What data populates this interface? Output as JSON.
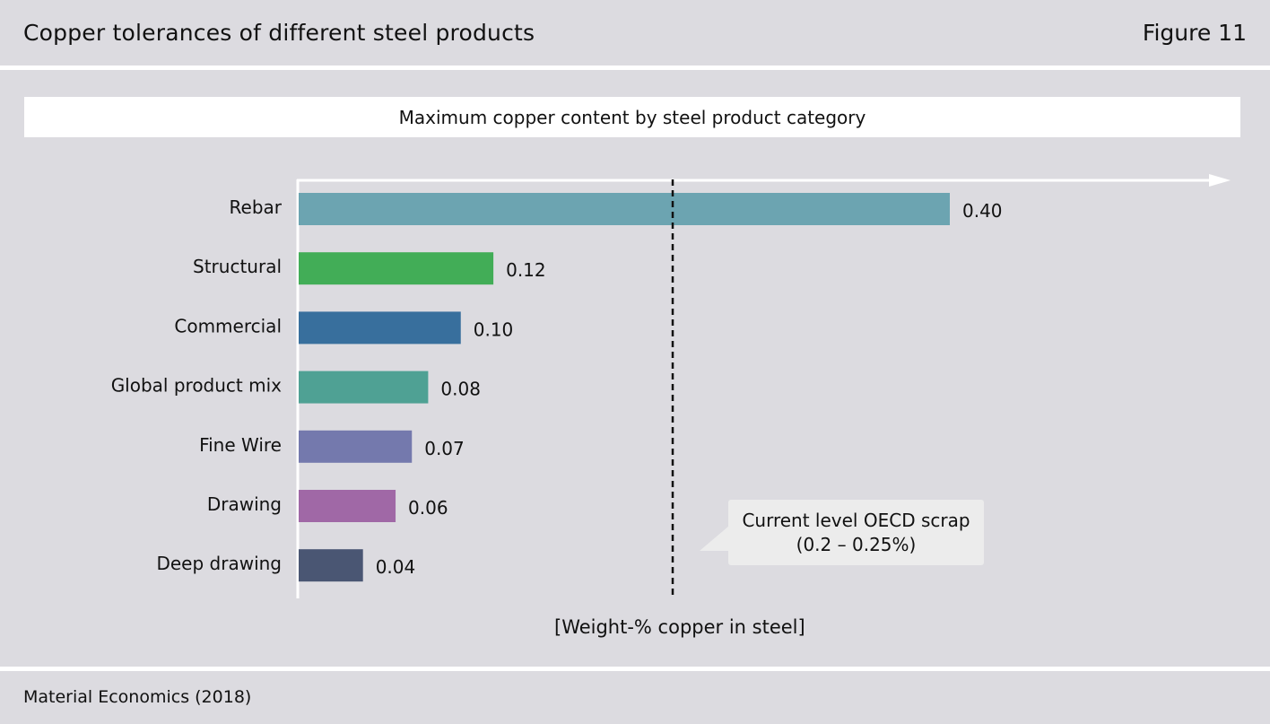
{
  "header": {
    "title": "Copper tolerances of different steel products",
    "figure": "Figure 11"
  },
  "chart_data": {
    "type": "bar",
    "orientation": "horizontal",
    "title": "Maximum copper content by steel product category",
    "xlabel": "[Weight-% copper in steel]",
    "ylabel": "",
    "categories": [
      "Rebar",
      "Structural",
      "Commercial",
      "Global product mix",
      "Fine Wire",
      "Drawing",
      "Deep drawing"
    ],
    "values": [
      0.4,
      0.12,
      0.1,
      0.08,
      0.07,
      0.06,
      0.04
    ],
    "value_labels": [
      "0.40",
      "0.12",
      "0.10",
      "0.08",
      "0.07",
      "0.06",
      "0.04"
    ],
    "colors": [
      "#6ca4b1",
      "#42ad57",
      "#386f9d",
      "#4fa194",
      "#7479ad",
      "#a068a6",
      "#4a5673"
    ],
    "xlim": [
      0,
      0.4
    ],
    "grid": false,
    "reference_line": {
      "value": 0.23,
      "style": "dashed",
      "label_line1": "Current level OECD scrap",
      "label_line2": "(0.2 – 0.25%)"
    }
  },
  "footer": {
    "source": "Material Economics (2018)"
  }
}
